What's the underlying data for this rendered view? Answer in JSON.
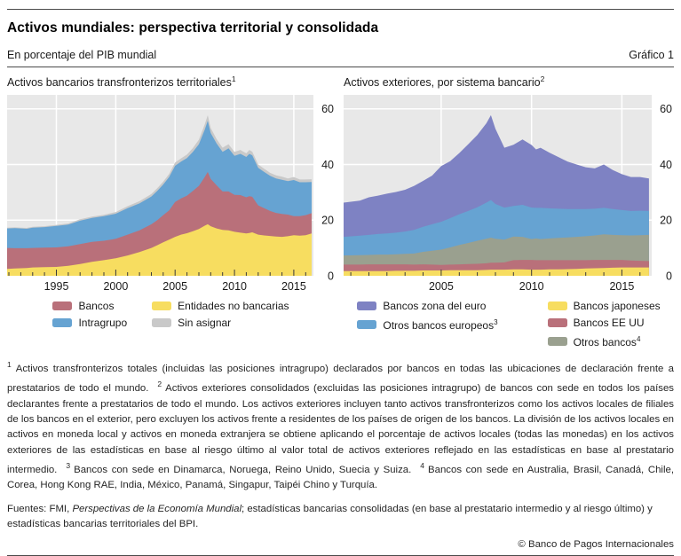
{
  "header": {
    "title": "Activos mundiales: perspectiva territorial y consolidada",
    "subtitle": "En porcentaje del PIB mundial",
    "graph_label": "Gráfico 1"
  },
  "chart_data": [
    {
      "type": "area",
      "stacked": true,
      "title": "Activos bancarios transfronterizos territoriales",
      "title_sup": "1",
      "bg": "#e8e8e8",
      "grid_color": "#ffffff",
      "ylim": [
        0,
        65
      ],
      "yticks": [
        0,
        20,
        40,
        60
      ],
      "yticks_position": "right",
      "xlim": [
        1990.85,
        2016.65
      ],
      "xtick_labels": [
        1995,
        2000,
        2005,
        2010,
        2015
      ],
      "x": [
        1990.85,
        1991.5,
        1992,
        1992.5,
        1993,
        1994,
        1995,
        1996,
        1997,
        1998,
        1999,
        2000,
        2001,
        2002,
        2003,
        2003.5,
        2004,
        2004.5,
        2005,
        2005.5,
        2006,
        2006.5,
        2007,
        2007.5,
        2007.75,
        2008,
        2008.5,
        2009,
        2009.5,
        2010,
        2010.5,
        2011,
        2011.25,
        2011.5,
        2012,
        2012.5,
        2013,
        2013.5,
        2014,
        2014.5,
        2015,
        2015.5,
        2016,
        2016.5
      ],
      "series": [
        {
          "name": "Entidades no bancarias",
          "color": "#f7dd60",
          "values": [
            2.5,
            2.6,
            2.7,
            2.8,
            3.0,
            3.1,
            3.2,
            3.6,
            4.2,
            5.0,
            5.6,
            6.3,
            7.3,
            8.5,
            10.0,
            11.0,
            12.0,
            13.0,
            14.0,
            14.8,
            15.3,
            16.0,
            16.8,
            18.0,
            18.5,
            17.8,
            17.0,
            16.5,
            16.3,
            15.8,
            15.5,
            15.2,
            15.4,
            15.6,
            14.8,
            14.5,
            14.3,
            14.1,
            14.0,
            14.2,
            14.6,
            14.4,
            14.6,
            15.2
          ]
        },
        {
          "name": "Bancos",
          "color": "#b9707a",
          "values": [
            7.5,
            7.3,
            7.2,
            7.1,
            7.0,
            7.0,
            7.0,
            7.0,
            7.2,
            7.2,
            7.0,
            7.0,
            7.5,
            7.8,
            8.5,
            9.0,
            9.8,
            10.5,
            12.5,
            13.0,
            13.5,
            14.5,
            15.5,
            17.5,
            18.8,
            17.0,
            15.5,
            13.8,
            14.0,
            13.3,
            13.5,
            13.0,
            13.2,
            12.8,
            10.5,
            9.8,
            9.0,
            8.5,
            8.2,
            7.8,
            6.8,
            7.0,
            7.2,
            7.3
          ]
        },
        {
          "name": "Intragrupo",
          "color": "#66a3d2",
          "values": [
            7.0,
            7.2,
            7.1,
            7.0,
            7.3,
            7.4,
            7.7,
            7.8,
            8.4,
            8.6,
            8.8,
            9.0,
            9.5,
            9.7,
            10.0,
            10.5,
            11.0,
            12.0,
            13.0,
            13.2,
            13.5,
            14.0,
            15.0,
            17.0,
            18.4,
            16.5,
            15.0,
            14.2,
            15.5,
            14.0,
            14.8,
            14.5,
            15.2,
            14.9,
            13.5,
            13.0,
            12.6,
            12.4,
            12.3,
            12.0,
            13.0,
            12.2,
            11.8,
            11.2
          ]
        },
        {
          "name": "Sin asignar",
          "color": "#c9c9c9",
          "values": [
            0.3,
            0.3,
            0.3,
            0.3,
            0.3,
            0.3,
            0.4,
            0.4,
            0.5,
            0.5,
            0.5,
            0.6,
            0.7,
            0.8,
            0.9,
            1.0,
            1.0,
            1.1,
            1.2,
            1.2,
            1.3,
            1.4,
            1.6,
            1.9,
            2.0,
            1.8,
            1.6,
            1.5,
            1.5,
            1.4,
            1.4,
            1.3,
            1.4,
            1.3,
            1.2,
            1.2,
            1.1,
            1.1,
            1.1,
            1.0,
            1.1,
            1.0,
            1.0,
            1.0
          ]
        }
      ],
      "legend": {
        "columns": [
          [
            {
              "label": "Bancos",
              "color": "#b9707a"
            },
            {
              "label": "Intragrupo",
              "color": "#66a3d2"
            }
          ],
          [
            {
              "label": "Entidades no bancarias",
              "color": "#f7dd60"
            },
            {
              "label": "Sin asignar",
              "color": "#c9c9c9"
            }
          ]
        ]
      }
    },
    {
      "type": "area",
      "stacked": true,
      "title": "Activos exteriores, por sistema bancario",
      "title_sup": "2",
      "bg": "#e8e8e8",
      "grid_color": "#ffffff",
      "ylim": [
        0,
        65
      ],
      "yticks": [
        0,
        20,
        40,
        60
      ],
      "yticks_position": "right",
      "xlim": [
        1999.6,
        2016.65
      ],
      "xtick_labels": [
        2005,
        2010,
        2015
      ],
      "x": [
        1999.6,
        2000.5,
        2001,
        2001.5,
        2002,
        2002.5,
        2003,
        2003.5,
        2004,
        2004.5,
        2005,
        2005.5,
        2006,
        2006.5,
        2007,
        2007.5,
        2007.75,
        2008,
        2008.5,
        2009,
        2009.5,
        2010,
        2010.25,
        2010.5,
        2011,
        2011.5,
        2012,
        2012.5,
        2013,
        2013.5,
        2014,
        2014.5,
        2015,
        2015.5,
        2016,
        2016.5
      ],
      "series": [
        {
          "name": "Bancos japoneses",
          "color": "#f7dd60",
          "values": [
            1.7,
            1.7,
            1.7,
            1.7,
            1.7,
            1.8,
            1.8,
            1.8,
            1.9,
            1.9,
            1.9,
            2.0,
            2.0,
            2.0,
            2.0,
            2.1,
            2.2,
            2.2,
            2.2,
            2.3,
            2.3,
            2.2,
            2.2,
            2.2,
            2.3,
            2.3,
            2.4,
            2.5,
            2.6,
            2.7,
            2.8,
            2.9,
            3.0,
            3.0,
            3.0,
            3.0
          ]
        },
        {
          "name": "Bancos EE UU",
          "color": "#b9707a",
          "values": [
            2.3,
            2.3,
            2.4,
            2.4,
            2.4,
            2.3,
            2.3,
            2.2,
            2.2,
            2.1,
            2.0,
            2.0,
            2.1,
            2.2,
            2.3,
            2.4,
            2.5,
            2.5,
            2.6,
            3.3,
            3.4,
            3.5,
            3.4,
            3.4,
            3.3,
            3.3,
            3.2,
            3.1,
            3.0,
            3.0,
            2.9,
            2.8,
            2.7,
            2.5,
            2.4,
            2.3
          ]
        },
        {
          "name": "Otros bancos",
          "name_sup": "4",
          "color": "#9aa08f",
          "values": [
            3.3,
            3.4,
            3.4,
            3.5,
            3.5,
            3.6,
            3.8,
            4.0,
            4.5,
            5.0,
            5.5,
            6.2,
            7.0,
            7.6,
            8.3,
            8.8,
            9.0,
            8.6,
            8.2,
            8.5,
            8.3,
            7.5,
            7.8,
            7.6,
            7.8,
            8.0,
            8.2,
            8.4,
            8.6,
            8.8,
            9.2,
            9.0,
            8.9,
            9.0,
            9.2,
            9.4
          ]
        },
        {
          "name": "Otros bancos europeos",
          "name_sup": "3",
          "color": "#66a3d2",
          "values": [
            6.7,
            7.0,
            7.2,
            7.4,
            7.6,
            7.8,
            8.0,
            8.5,
            9.0,
            9.5,
            10.0,
            10.5,
            11.0,
            11.5,
            12.0,
            13.0,
            13.5,
            12.5,
            11.5,
            11.0,
            11.5,
            11.3,
            11.0,
            11.2,
            10.8,
            10.5,
            10.2,
            10.0,
            9.8,
            9.6,
            9.5,
            9.3,
            9.0,
            8.8,
            8.8,
            8.6
          ]
        },
        {
          "name": "Bancos zona del euro",
          "color": "#7e82c3",
          "values": [
            12.3,
            12.6,
            13.5,
            13.8,
            14.3,
            14.6,
            15.0,
            15.8,
            16.5,
            17.5,
            20.0,
            20.5,
            22.0,
            24.0,
            26.0,
            28.5,
            30.5,
            27.0,
            21.5,
            22.0,
            23.5,
            22.5,
            21.0,
            21.6,
            20.0,
            18.5,
            17.0,
            16.0,
            15.0,
            14.5,
            15.6,
            14.0,
            12.9,
            12.2,
            12.1,
            11.7
          ]
        }
      ],
      "legend": {
        "columns": [
          [
            {
              "label": "Bancos zona del euro",
              "color": "#7e82c3"
            },
            {
              "label": "Otros bancos europeos",
              "sup": "3",
              "color": "#66a3d2"
            }
          ],
          [
            {
              "label": "Bancos japoneses",
              "color": "#f7dd60"
            },
            {
              "label": "Bancos EE UU",
              "color": "#b9707a"
            },
            {
              "label": "Otros bancos",
              "sup": "4",
              "color": "#9aa08f"
            }
          ]
        ]
      }
    }
  ],
  "footnotes": [
    {
      "sup": "1"
    },
    {
      "t": "Activos transfronterizos totales (incluidas las posiciones intragrupo) declarados por bancos en todas las ubicaciones de declaración frente a prestatarios de todo el mundo."
    },
    {
      "sup": "2"
    },
    {
      "t": "Activos exteriores consolidados (excluidas las posiciones intragrupo) de bancos con sede en todos los países declarantes frente a prestatarios de todo el mundo. Los activos exteriores incluyen tanto activos transfronterizos como los activos locales de filiales de los bancos en el exterior, pero excluyen los activos frente a residentes de los países de origen de los bancos. La división de los activos locales en activos en moneda local y activos en moneda extranjera se obtiene aplicando el porcentaje de activos locales (todas las monedas) en los activos exteriores de las estadísticas en base al riesgo último al valor total de activos exteriores reflejado en las estadísticas en base al prestatario intermedio."
    },
    {
      "sup": "3"
    },
    {
      "t": "Bancos con sede en Dinamarca, Noruega, Reino Unido, Suecia y Suiza."
    },
    {
      "sup": "4"
    },
    {
      "t": "Bancos con sede en Australia, Brasil, Canadá, Chile, Corea, Hong Kong RAE, India, México, Panamá, Singapur, Taipéi Chino y Turquía."
    }
  ],
  "sources": [
    {
      "t": "Fuentes: FMI, "
    },
    {
      "i": "Perspectivas de la Economía Mundial"
    },
    {
      "t": "; estadísticas bancarias consolidadas (en base al prestatario intermedio y al riesgo último) y estadísticas bancarias territoriales del BPI."
    }
  ],
  "copyright": "© Banco de Pagos Internacionales"
}
